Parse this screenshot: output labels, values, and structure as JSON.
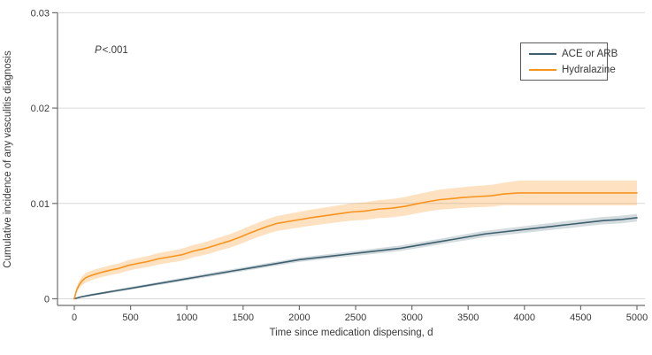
{
  "figure": {
    "background": "#ffffff"
  },
  "chart_data": {
    "type": "line",
    "subtype": "cumulative-incidence-curves-with-confidence-bands",
    "title": "",
    "xlabel": "Time since medication dispensing, d",
    "ylabel": "Cumulative incidence of any vasculitis diagnosis",
    "annotation": {
      "p_symbol": "P",
      "p_value": "<.001"
    },
    "xlim": [
      0,
      5000
    ],
    "ylim": [
      0,
      0.03
    ],
    "x_ticks": [
      "0",
      "500",
      "1000",
      "1500",
      "2000",
      "2500",
      "3000",
      "3500",
      "4000",
      "4500",
      "5000"
    ],
    "y_ticks": [
      {
        "label": "0",
        "value": 0
      },
      {
        "label": "0.01",
        "value": 0.01
      },
      {
        "label": "0.02",
        "value": 0.02
      },
      {
        "label": "0.03",
        "value": 0.03
      }
    ],
    "grid": "horizontal",
    "legend": {
      "position": "top-right",
      "entries": [
        {
          "name": "ACE or ARB",
          "color": "#3d5f6e"
        },
        {
          "name": "Hydralazine",
          "color": "#f7941e"
        }
      ]
    },
    "style": {
      "axis_color": "#6e6e6e",
      "grid_color": "#d9d9d9",
      "text_color": "#383838",
      "legend_border_color": "#58595b",
      "background": "#ffffff"
    },
    "series": [
      {
        "name": "ACE or ARB",
        "key": "ace-or-arb",
        "line_color": "#3d5f6e",
        "band_color": "rgba(61,95,110,0.22)",
        "x": [
          0,
          60,
          150,
          250,
          350,
          500,
          650,
          800,
          950,
          1100,
          1250,
          1400,
          1550,
          1700,
          1850,
          2000,
          2150,
          2300,
          2450,
          2600,
          2750,
          2900,
          3050,
          3200,
          3350,
          3500,
          3650,
          3800,
          3950,
          4100,
          4250,
          4400,
          4550,
          4700,
          4850,
          5000
        ],
        "y": [
          0,
          0.0002,
          0.0004,
          0.0006,
          0.0008,
          0.0011,
          0.0014,
          0.0017,
          0.002,
          0.0023,
          0.0026,
          0.0029,
          0.0032,
          0.0035,
          0.0038,
          0.0041,
          0.0043,
          0.0045,
          0.0047,
          0.0049,
          0.0051,
          0.0053,
          0.0056,
          0.0059,
          0.0062,
          0.0065,
          0.0068,
          0.007,
          0.0072,
          0.0074,
          0.0076,
          0.0078,
          0.008,
          0.0082,
          0.0083,
          0.0085
        ],
        "band": [
          8e-05,
          0.0001,
          0.00012,
          0.00013,
          0.00014,
          0.00015,
          0.00016,
          0.00017,
          0.00018,
          0.00019,
          0.0002,
          0.0002,
          0.00021,
          0.00022,
          0.00022,
          0.00023,
          0.00024,
          0.00025,
          0.00026,
          0.00027,
          0.00028,
          0.00029,
          0.0003,
          0.0003,
          0.00031,
          0.00032,
          0.00033,
          0.00034,
          0.00035,
          0.00036,
          0.00037,
          0.00038,
          0.00038,
          0.00039,
          0.0004,
          0.0004
        ]
      },
      {
        "name": "Hydralazine",
        "key": "hydralazine",
        "line_color": "#f7941e",
        "band_color": "rgba(247,148,30,0.28)",
        "x": [
          0,
          20,
          45,
          70,
          100,
          140,
          190,
          250,
          320,
          400,
          480,
          560,
          650,
          750,
          850,
          950,
          1060,
          1170,
          1280,
          1390,
          1480,
          1560,
          1650,
          1720,
          1800,
          1900,
          2000,
          2100,
          2220,
          2340,
          2460,
          2580,
          2700,
          2820,
          2940,
          3060,
          3150,
          3250,
          3350,
          3430,
          3550,
          3700,
          3820,
          3950,
          5000
        ],
        "y": [
          0,
          0.0009,
          0.0015,
          0.0019,
          0.0022,
          0.0024,
          0.0026,
          0.0028,
          0.003,
          0.0032,
          0.0035,
          0.0037,
          0.0039,
          0.0042,
          0.0044,
          0.0046,
          0.005,
          0.0053,
          0.0057,
          0.0061,
          0.0065,
          0.0069,
          0.0073,
          0.0076,
          0.0079,
          0.0081,
          0.0083,
          0.0085,
          0.0087,
          0.0089,
          0.0091,
          0.0092,
          0.0094,
          0.0095,
          0.0097,
          0.01,
          0.0102,
          0.0104,
          0.0105,
          0.0106,
          0.0107,
          0.0108,
          0.011,
          0.0111,
          0.0111
        ],
        "band": [
          0.0001,
          0.0003,
          0.0004,
          0.00045,
          0.0005,
          0.0005,
          0.0005,
          0.0005,
          0.00052,
          0.00053,
          0.00055,
          0.00056,
          0.00058,
          0.0006,
          0.00061,
          0.00063,
          0.00065,
          0.00067,
          0.00069,
          0.00071,
          0.00073,
          0.00074,
          0.00076,
          0.00077,
          0.00078,
          0.0008,
          0.00082,
          0.00084,
          0.00086,
          0.00088,
          0.0009,
          0.00092,
          0.00094,
          0.00096,
          0.00098,
          0.001,
          0.00102,
          0.00105,
          0.00107,
          0.00108,
          0.00111,
          0.00114,
          0.00118,
          0.0013,
          0.0013
        ]
      }
    ]
  }
}
